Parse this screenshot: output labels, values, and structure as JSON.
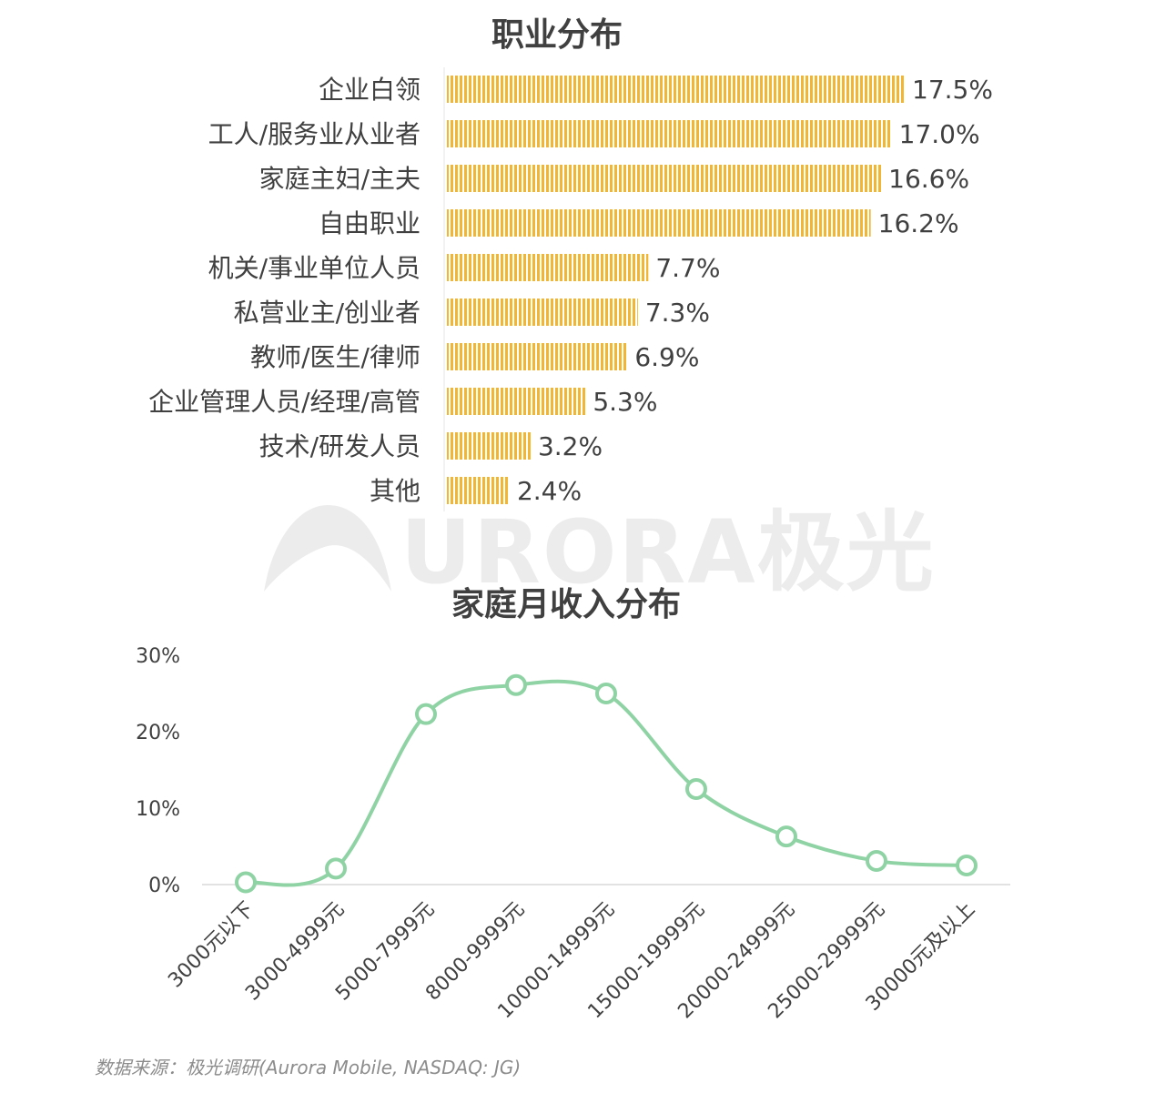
{
  "colors": {
    "bar": "#F2B632",
    "line": "#8FD3A5",
    "axis": "#d9d9d9",
    "text": "#404040"
  },
  "watermark": {
    "text": "URORA极光"
  },
  "source": "数据来源：极光调研(Aurora Mobile, NASDAQ: JG)",
  "chart_data": [
    {
      "type": "bar",
      "orientation": "horizontal",
      "title": "职业分布",
      "categories": [
        "企业白领",
        "工人/服务业从业者",
        "家庭主妇/主夫",
        "自由职业",
        "机关/事业单位人员",
        "私营业主/创业者",
        "教师/医生/律师",
        "企业管理人员/经理/高管",
        "技术/研发人员",
        "其他"
      ],
      "values": [
        17.5,
        17.0,
        16.6,
        16.2,
        7.7,
        7.3,
        6.9,
        5.3,
        3.2,
        2.4
      ],
      "value_labels": [
        "17.5%",
        "17.0%",
        "16.6%",
        "16.2%",
        "7.7%",
        "7.3%",
        "6.9%",
        "5.3%",
        "3.2%",
        "2.4%"
      ],
      "unit": "%"
    },
    {
      "type": "line",
      "title": "家庭月收入分布",
      "categories": [
        "3000元以下",
        "3000-4999元",
        "5000-7999元",
        "8000-9999元",
        "10000-14999元",
        "15000-19999元",
        "20000-24999元",
        "25000-29999元",
        "30000元及以上"
      ],
      "values": [
        0.3,
        2.1,
        22.3,
        26.1,
        25.0,
        12.5,
        6.3,
        3.1,
        2.5
      ],
      "yticks": [
        "0%",
        "10%",
        "20%",
        "30%"
      ],
      "ylim": [
        0,
        30
      ],
      "smooth": true
    }
  ]
}
